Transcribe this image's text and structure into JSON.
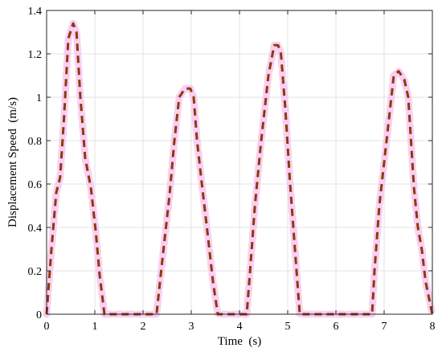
{
  "chart_data": {
    "type": "line",
    "title": "",
    "xlabel": "Time  (s)",
    "ylabel": "Displacement Speed  (m/s)",
    "xlim": [
      0,
      8
    ],
    "ylim": [
      0,
      1.4
    ],
    "xticks": [
      0,
      1,
      2,
      3,
      4,
      5,
      6,
      7,
      8
    ],
    "yticks": [
      0,
      0.2,
      0.4,
      0.6,
      0.8,
      1,
      1.2,
      1.4
    ],
    "grid": true,
    "legend": "none",
    "series": [
      {
        "style": "dashed",
        "color": "#8b3a0e",
        "highlight_color": "#f7c4ef",
        "x": [
          0,
          0.1,
          0.2,
          0.28,
          0.36,
          0.45,
          0.55,
          0.62,
          0.7,
          0.8,
          0.92,
          1.02,
          1.1,
          1.2,
          1.3,
          2.0,
          2.28,
          2.4,
          2.55,
          2.65,
          2.75,
          2.87,
          2.98,
          3.05,
          3.12,
          3.22,
          3.35,
          3.45,
          3.55,
          3.65,
          4.15,
          4.22,
          4.32,
          4.45,
          4.6,
          4.72,
          4.8,
          4.86,
          4.95,
          5.05,
          5.15,
          5.25,
          6.75,
          6.8,
          6.9,
          7.0,
          7.1,
          7.2,
          7.3,
          7.42,
          7.5,
          7.62,
          7.7,
          7.78,
          7.86,
          8.0
        ],
        "y": [
          0,
          0.3,
          0.56,
          0.63,
          0.9,
          1.27,
          1.34,
          1.3,
          1.0,
          0.72,
          0.58,
          0.38,
          0.18,
          0,
          0,
          0,
          0,
          0.25,
          0.55,
          0.8,
          1.0,
          1.04,
          1.04,
          1.0,
          0.8,
          0.6,
          0.35,
          0.15,
          0,
          0,
          0,
          0.2,
          0.5,
          0.8,
          1.1,
          1.24,
          1.24,
          1.2,
          0.95,
          0.6,
          0.3,
          0,
          0,
          0.2,
          0.5,
          0.7,
          0.9,
          1.1,
          1.12,
          1.08,
          1.0,
          0.58,
          0.4,
          0.3,
          0.15,
          0
        ]
      }
    ]
  }
}
